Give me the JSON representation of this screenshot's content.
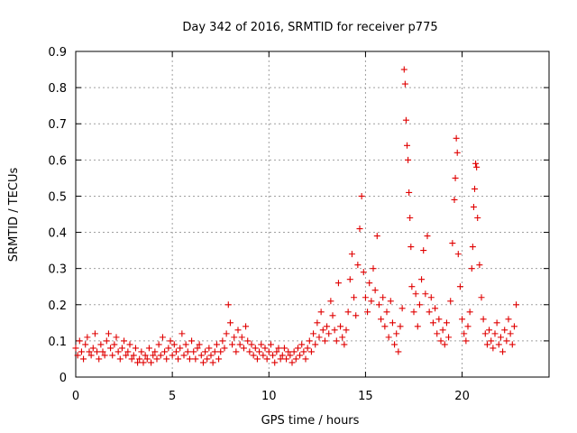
{
  "chart_data": {
    "type": "scatter",
    "title": "Day 342 of 2016, SRMTID for receiver p775",
    "xlabel": "GPS time / hours",
    "ylabel": "SRMTID / TECUs",
    "xlim": [
      0,
      24.5
    ],
    "ylim": [
      0,
      0.9
    ],
    "xticks": [
      0,
      5,
      10,
      15,
      20
    ],
    "xtick_labels": [
      "0",
      "5",
      "10",
      "15",
      "20"
    ],
    "yticks": [
      0,
      0.1,
      0.2,
      0.3,
      0.4,
      0.5,
      0.6,
      0.7,
      0.8,
      0.9
    ],
    "ytick_labels": [
      "0",
      "0.1",
      "0.2",
      "0.3",
      "0.4",
      "0.5",
      "0.6",
      "0.7",
      "0.8",
      "0.9"
    ],
    "grid": true,
    "marker": "+",
    "color": "#e00000",
    "series": [
      {
        "name": "SRMTID",
        "points": [
          [
            0.0,
            0.08
          ],
          [
            0.1,
            0.06
          ],
          [
            0.2,
            0.1
          ],
          [
            0.3,
            0.07
          ],
          [
            0.4,
            0.05
          ],
          [
            0.5,
            0.09
          ],
          [
            0.6,
            0.11
          ],
          [
            0.7,
            0.07
          ],
          [
            0.8,
            0.06
          ],
          [
            0.9,
            0.08
          ],
          [
            1.0,
            0.12
          ],
          [
            1.1,
            0.07
          ],
          [
            1.2,
            0.05
          ],
          [
            1.3,
            0.09
          ],
          [
            1.4,
            0.07
          ],
          [
            1.5,
            0.06
          ],
          [
            1.6,
            0.1
          ],
          [
            1.7,
            0.12
          ],
          [
            1.8,
            0.08
          ],
          [
            1.9,
            0.06
          ],
          [
            2.0,
            0.09
          ],
          [
            2.1,
            0.11
          ],
          [
            2.2,
            0.07
          ],
          [
            2.3,
            0.05
          ],
          [
            2.4,
            0.08
          ],
          [
            2.5,
            0.1
          ],
          [
            2.6,
            0.06
          ],
          [
            2.7,
            0.07
          ],
          [
            2.8,
            0.09
          ],
          [
            2.9,
            0.05
          ],
          [
            3.0,
            0.06
          ],
          [
            3.1,
            0.08
          ],
          [
            3.2,
            0.04
          ],
          [
            3.3,
            0.05
          ],
          [
            3.4,
            0.07
          ],
          [
            3.5,
            0.04
          ],
          [
            3.6,
            0.06
          ],
          [
            3.7,
            0.05
          ],
          [
            3.8,
            0.08
          ],
          [
            3.9,
            0.04
          ],
          [
            4.0,
            0.06
          ],
          [
            4.1,
            0.07
          ],
          [
            4.2,
            0.05
          ],
          [
            4.3,
            0.09
          ],
          [
            4.4,
            0.06
          ],
          [
            4.5,
            0.11
          ],
          [
            4.6,
            0.07
          ],
          [
            4.7,
            0.05
          ],
          [
            4.8,
            0.08
          ],
          [
            4.9,
            0.1
          ],
          [
            5.0,
            0.06
          ],
          [
            5.1,
            0.09
          ],
          [
            5.2,
            0.07
          ],
          [
            5.3,
            0.05
          ],
          [
            5.4,
            0.08
          ],
          [
            5.5,
            0.12
          ],
          [
            5.6,
            0.06
          ],
          [
            5.7,
            0.09
          ],
          [
            5.8,
            0.07
          ],
          [
            5.9,
            0.05
          ],
          [
            6.0,
            0.1
          ],
          [
            6.1,
            0.07
          ],
          [
            6.2,
            0.05
          ],
          [
            6.3,
            0.08
          ],
          [
            6.4,
            0.09
          ],
          [
            6.5,
            0.06
          ],
          [
            6.6,
            0.04
          ],
          [
            6.7,
            0.07
          ],
          [
            6.8,
            0.05
          ],
          [
            6.9,
            0.08
          ],
          [
            7.0,
            0.06
          ],
          [
            7.1,
            0.04
          ],
          [
            7.2,
            0.07
          ],
          [
            7.3,
            0.09
          ],
          [
            7.4,
            0.05
          ],
          [
            7.5,
            0.07
          ],
          [
            7.6,
            0.1
          ],
          [
            7.7,
            0.08
          ],
          [
            7.8,
            0.12
          ],
          [
            7.9,
            0.2
          ],
          [
            8.0,
            0.15
          ],
          [
            8.1,
            0.09
          ],
          [
            8.2,
            0.11
          ],
          [
            8.3,
            0.07
          ],
          [
            8.4,
            0.13
          ],
          [
            8.5,
            0.09
          ],
          [
            8.6,
            0.11
          ],
          [
            8.7,
            0.08
          ],
          [
            8.8,
            0.14
          ],
          [
            8.9,
            0.1
          ],
          [
            9.0,
            0.07
          ],
          [
            9.1,
            0.09
          ],
          [
            9.2,
            0.06
          ],
          [
            9.3,
            0.08
          ],
          [
            9.4,
            0.05
          ],
          [
            9.5,
            0.07
          ],
          [
            9.6,
            0.09
          ],
          [
            9.7,
            0.06
          ],
          [
            9.8,
            0.08
          ],
          [
            9.9,
            0.05
          ],
          [
            10.0,
            0.07
          ],
          [
            10.1,
            0.09
          ],
          [
            10.2,
            0.06
          ],
          [
            10.3,
            0.04
          ],
          [
            10.4,
            0.07
          ],
          [
            10.5,
            0.08
          ],
          [
            10.6,
            0.05
          ],
          [
            10.7,
            0.06
          ],
          [
            10.8,
            0.08
          ],
          [
            10.9,
            0.05
          ],
          [
            11.0,
            0.07
          ],
          [
            11.1,
            0.06
          ],
          [
            11.2,
            0.04
          ],
          [
            11.3,
            0.07
          ],
          [
            11.4,
            0.05
          ],
          [
            11.5,
            0.08
          ],
          [
            11.6,
            0.06
          ],
          [
            11.7,
            0.09
          ],
          [
            11.8,
            0.07
          ],
          [
            11.9,
            0.05
          ],
          [
            12.0,
            0.08
          ],
          [
            12.1,
            0.1
          ],
          [
            12.2,
            0.07
          ],
          [
            12.3,
            0.12
          ],
          [
            12.4,
            0.09
          ],
          [
            12.5,
            0.15
          ],
          [
            12.6,
            0.11
          ],
          [
            12.7,
            0.18
          ],
          [
            12.8,
            0.13
          ],
          [
            12.9,
            0.1
          ],
          [
            13.0,
            0.14
          ],
          [
            13.1,
            0.12
          ],
          [
            13.2,
            0.21
          ],
          [
            13.3,
            0.17
          ],
          [
            13.4,
            0.13
          ],
          [
            13.5,
            0.1
          ],
          [
            13.6,
            0.26
          ],
          [
            13.7,
            0.14
          ],
          [
            13.8,
            0.11
          ],
          [
            13.9,
            0.09
          ],
          [
            14.0,
            0.13
          ],
          [
            14.1,
            0.18
          ],
          [
            14.2,
            0.27
          ],
          [
            14.3,
            0.34
          ],
          [
            14.4,
            0.22
          ],
          [
            14.5,
            0.17
          ],
          [
            14.6,
            0.31
          ],
          [
            14.7,
            0.41
          ],
          [
            14.8,
            0.5
          ],
          [
            14.9,
            0.29
          ],
          [
            15.0,
            0.22
          ],
          [
            15.1,
            0.18
          ],
          [
            15.2,
            0.26
          ],
          [
            15.3,
            0.21
          ],
          [
            15.4,
            0.3
          ],
          [
            15.5,
            0.24
          ],
          [
            15.6,
            0.39
          ],
          [
            15.7,
            0.2
          ],
          [
            15.8,
            0.16
          ],
          [
            15.9,
            0.22
          ],
          [
            16.0,
            0.14
          ],
          [
            16.1,
            0.18
          ],
          [
            16.2,
            0.11
          ],
          [
            16.3,
            0.21
          ],
          [
            16.4,
            0.15
          ],
          [
            16.5,
            0.09
          ],
          [
            16.6,
            0.12
          ],
          [
            16.7,
            0.07
          ],
          [
            16.8,
            0.14
          ],
          [
            16.9,
            0.19
          ],
          [
            17.0,
            0.85
          ],
          [
            17.05,
            0.81
          ],
          [
            17.1,
            0.71
          ],
          [
            17.15,
            0.64
          ],
          [
            17.2,
            0.6
          ],
          [
            17.25,
            0.51
          ],
          [
            17.3,
            0.44
          ],
          [
            17.35,
            0.36
          ],
          [
            17.4,
            0.25
          ],
          [
            17.5,
            0.18
          ],
          [
            17.6,
            0.23
          ],
          [
            17.7,
            0.14
          ],
          [
            17.8,
            0.2
          ],
          [
            17.9,
            0.27
          ],
          [
            18.0,
            0.35
          ],
          [
            18.1,
            0.23
          ],
          [
            18.2,
            0.39
          ],
          [
            18.3,
            0.18
          ],
          [
            18.4,
            0.22
          ],
          [
            18.5,
            0.15
          ],
          [
            18.6,
            0.19
          ],
          [
            18.7,
            0.12
          ],
          [
            18.8,
            0.16
          ],
          [
            18.9,
            0.1
          ],
          [
            19.0,
            0.13
          ],
          [
            19.1,
            0.09
          ],
          [
            19.2,
            0.15
          ],
          [
            19.3,
            0.11
          ],
          [
            19.4,
            0.21
          ],
          [
            19.5,
            0.37
          ],
          [
            19.6,
            0.49
          ],
          [
            19.65,
            0.55
          ],
          [
            19.7,
            0.66
          ],
          [
            19.75,
            0.62
          ],
          [
            19.8,
            0.34
          ],
          [
            19.9,
            0.25
          ],
          [
            20.0,
            0.16
          ],
          [
            20.1,
            0.12
          ],
          [
            20.2,
            0.1
          ],
          [
            20.3,
            0.14
          ],
          [
            20.4,
            0.18
          ],
          [
            20.5,
            0.3
          ],
          [
            20.55,
            0.36
          ],
          [
            20.6,
            0.47
          ],
          [
            20.65,
            0.52
          ],
          [
            20.7,
            0.59
          ],
          [
            20.75,
            0.58
          ],
          [
            20.8,
            0.44
          ],
          [
            20.9,
            0.31
          ],
          [
            21.0,
            0.22
          ],
          [
            21.1,
            0.16
          ],
          [
            21.2,
            0.12
          ],
          [
            21.3,
            0.09
          ],
          [
            21.4,
            0.13
          ],
          [
            21.5,
            0.1
          ],
          [
            21.6,
            0.08
          ],
          [
            21.7,
            0.12
          ],
          [
            21.8,
            0.15
          ],
          [
            21.9,
            0.09
          ],
          [
            22.0,
            0.11
          ],
          [
            22.1,
            0.07
          ],
          [
            22.2,
            0.13
          ],
          [
            22.3,
            0.1
          ],
          [
            22.4,
            0.16
          ],
          [
            22.5,
            0.12
          ],
          [
            22.6,
            0.09
          ],
          [
            22.7,
            0.14
          ],
          [
            22.8,
            0.2
          ]
        ]
      }
    ]
  }
}
